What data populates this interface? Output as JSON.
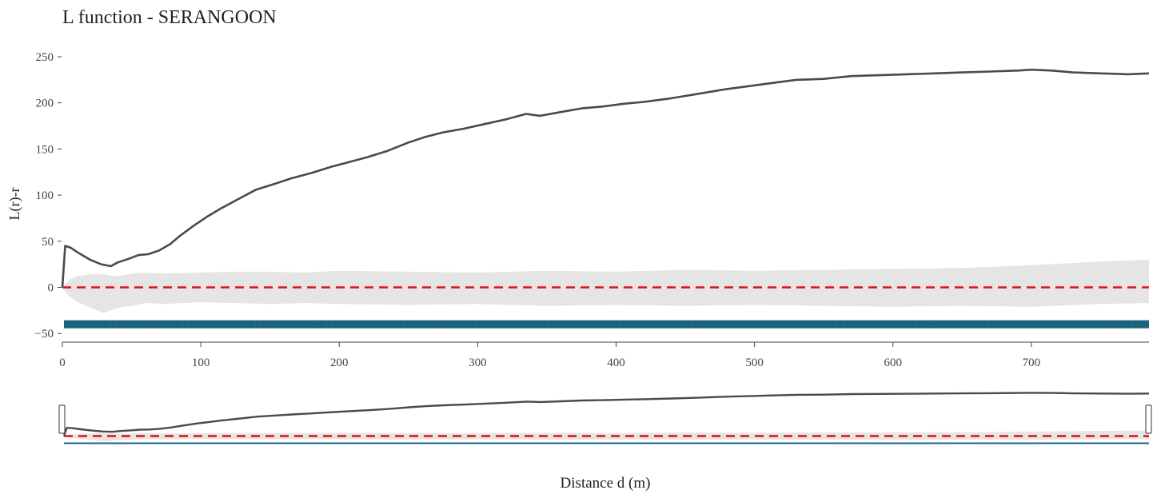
{
  "chart_data": {
    "type": "line",
    "title": "L function - SERANGOON",
    "xlabel": "Distance d (m)",
    "ylabel": "L(r)-r",
    "xlim": [
      0,
      785
    ],
    "ylim": [
      -50,
      255
    ],
    "x_ticks": [
      0,
      100,
      200,
      300,
      400,
      500,
      600,
      700
    ],
    "y_ticks": [
      -50,
      0,
      50,
      100,
      150,
      200,
      250
    ],
    "grid": false,
    "legend": "none",
    "colors": {
      "observed": "#4a4a4a",
      "theoretical": "#e01010",
      "envelope": "#e5e5e5",
      "band": "#1a6177"
    },
    "series": [
      {
        "key": "observed",
        "x": [
          0,
          2,
          6,
          12,
          20,
          28,
          35,
          40,
          48,
          55,
          62,
          70,
          78,
          85,
          95,
          105,
          115,
          125,
          140,
          155,
          165,
          180,
          195,
          205,
          220,
          235,
          250,
          262,
          275,
          290,
          305,
          320,
          335,
          345,
          360,
          375,
          390,
          405,
          420,
          440,
          460,
          480,
          500,
          515,
          530,
          550,
          570,
          590,
          610,
          630,
          650,
          670,
          690,
          700,
          715,
          730,
          750,
          770,
          785
        ],
        "y": [
          0,
          45,
          43,
          37,
          30,
          25,
          23,
          27,
          31,
          35,
          36,
          40,
          47,
          56,
          67,
          77,
          86,
          94,
          106,
          113,
          118,
          124,
          131,
          135,
          141,
          148,
          157,
          163,
          168,
          172,
          177,
          182,
          188,
          186,
          190,
          194,
          196,
          199,
          201,
          205,
          210,
          215,
          219,
          222,
          225,
          226,
          229,
          230,
          231,
          232,
          233,
          234,
          235,
          236,
          235,
          233,
          232,
          231,
          232
        ]
      },
      {
        "key": "theoretical",
        "x": [
          0,
          785
        ],
        "y": [
          0,
          0
        ]
      },
      {
        "key": "envelope",
        "x": [
          0,
          5,
          10,
          20,
          30,
          40,
          50,
          60,
          75,
          100,
          125,
          150,
          175,
          200,
          250,
          300,
          350,
          400,
          450,
          500,
          550,
          600,
          650,
          700,
          750,
          785
        ],
        "upper": [
          0,
          8,
          12,
          14,
          14,
          12,
          15,
          16,
          15,
          16,
          17,
          17,
          16,
          18,
          17,
          16,
          18,
          17,
          19,
          18,
          19,
          20,
          21,
          24,
          28,
          30
        ],
        "lower": [
          0,
          -10,
          -15,
          -22,
          -28,
          -22,
          -20,
          -17,
          -18,
          -16,
          -17,
          -18,
          -17,
          -18,
          -19,
          -18,
          -20,
          -19,
          -20,
          -19,
          -20,
          -21,
          -20,
          -21,
          -18,
          -17
        ]
      }
    ],
    "band_y": -40,
    "overview_range": [
      0,
      785
    ]
  }
}
